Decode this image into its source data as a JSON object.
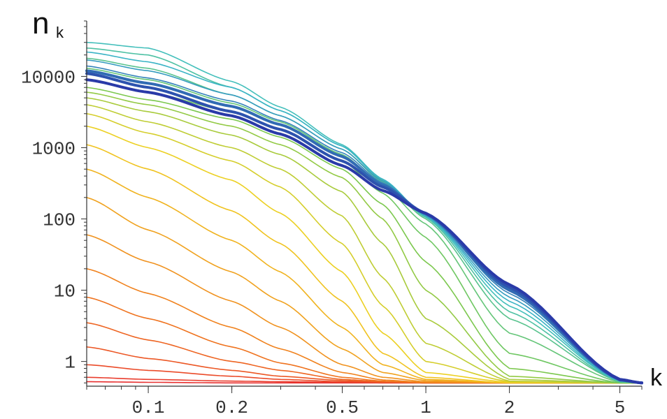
{
  "chart_data": {
    "type": "line",
    "x_scale": "log",
    "y_scale": "log",
    "xlabel": "k",
    "ylabel": "n",
    "ylabel_subscript": "k",
    "xlim": [
      0.06,
      6.0
    ],
    "ylim": [
      0.45,
      60000
    ],
    "x_ticks": [
      {
        "value": 0.1,
        "label": "0.1"
      },
      {
        "value": 0.2,
        "label": "0.2"
      },
      {
        "value": 0.5,
        "label": "0.5"
      },
      {
        "value": 1,
        "label": "1"
      },
      {
        "value": 2,
        "label": "2"
      },
      {
        "value": 5,
        "label": "5"
      }
    ],
    "y_ticks": [
      {
        "value": 1,
        "label": "1"
      },
      {
        "value": 10,
        "label": "10"
      },
      {
        "value": 100,
        "label": "100"
      },
      {
        "value": 1000,
        "label": "1000"
      },
      {
        "value": 10000,
        "label": "10000"
      }
    ],
    "grid": false,
    "legend": "none",
    "color_scheme": "rainbow: red (earliest) through orange, yellow, green, cyan to blue (latest)",
    "curve_colors": {
      "start": "#e83030",
      "mid": "#f0d020",
      "end": "#2a3aa8"
    },
    "asymptote": 0.5,
    "series": [
      {
        "x": [
          0.06,
          0.1,
          0.2,
          0.3,
          0.5,
          0.7,
          1.0,
          2.0,
          5.0,
          6.0
        ],
        "y": [
          0.52,
          0.51,
          0.5,
          0.5,
          0.5,
          0.5,
          0.5,
          0.5,
          0.5,
          0.5
        ]
      },
      {
        "x": [
          0.06,
          0.1,
          0.2,
          0.3,
          0.5,
          0.7,
          1.0,
          2.0,
          5.0,
          6.0
        ],
        "y": [
          0.6,
          0.56,
          0.53,
          0.52,
          0.51,
          0.5,
          0.5,
          0.5,
          0.5,
          0.5
        ]
      },
      {
        "x": [
          0.06,
          0.1,
          0.2,
          0.3,
          0.5,
          0.7,
          1.0,
          2.0,
          5.0,
          6.0
        ],
        "y": [
          0.9,
          0.75,
          0.62,
          0.56,
          0.52,
          0.51,
          0.5,
          0.5,
          0.5,
          0.5
        ]
      },
      {
        "x": [
          0.06,
          0.1,
          0.2,
          0.3,
          0.5,
          0.7,
          1.0,
          2.0,
          5.0,
          6.0
        ],
        "y": [
          1.6,
          1.1,
          0.75,
          0.62,
          0.54,
          0.51,
          0.5,
          0.5,
          0.5,
          0.5
        ]
      },
      {
        "x": [
          0.06,
          0.1,
          0.2,
          0.3,
          0.5,
          0.7,
          1.0,
          2.0,
          5.0,
          6.0
        ],
        "y": [
          3.5,
          2.0,
          1.0,
          0.75,
          0.56,
          0.52,
          0.5,
          0.5,
          0.5,
          0.5
        ]
      },
      {
        "x": [
          0.06,
          0.1,
          0.2,
          0.3,
          0.5,
          0.7,
          1.0,
          2.0,
          5.0,
          6.0
        ],
        "y": [
          8,
          4,
          1.6,
          0.95,
          0.6,
          0.53,
          0.5,
          0.5,
          0.5,
          0.5
        ]
      },
      {
        "x": [
          0.06,
          0.1,
          0.2,
          0.3,
          0.5,
          0.7,
          1.0,
          2.0,
          5.0,
          6.0
        ],
        "y": [
          20,
          9,
          3,
          1.5,
          0.7,
          0.55,
          0.51,
          0.5,
          0.5,
          0.5
        ]
      },
      {
        "x": [
          0.06,
          0.1,
          0.2,
          0.3,
          0.5,
          0.7,
          1.0,
          2.0,
          5.0,
          6.0
        ],
        "y": [
          60,
          25,
          7,
          3,
          0.9,
          0.6,
          0.52,
          0.5,
          0.5,
          0.5
        ]
      },
      {
        "x": [
          0.06,
          0.1,
          0.2,
          0.3,
          0.5,
          0.7,
          1.0,
          2.0,
          5.0,
          6.0
        ],
        "y": [
          200,
          70,
          18,
          7,
          1.5,
          0.7,
          0.54,
          0.5,
          0.5,
          0.5
        ]
      },
      {
        "x": [
          0.06,
          0.1,
          0.2,
          0.3,
          0.5,
          0.7,
          1.0,
          2.0,
          5.0,
          6.0
        ],
        "y": [
          500,
          200,
          50,
          18,
          3,
          0.9,
          0.56,
          0.5,
          0.5,
          0.5
        ]
      },
      {
        "x": [
          0.06,
          0.1,
          0.2,
          0.3,
          0.5,
          0.7,
          1.0,
          2.0,
          5.0,
          6.0
        ],
        "y": [
          1100,
          500,
          130,
          45,
          7,
          1.3,
          0.6,
          0.5,
          0.5,
          0.5
        ]
      },
      {
        "x": [
          0.06,
          0.1,
          0.2,
          0.3,
          0.5,
          0.7,
          1.0,
          2.0,
          5.0,
          6.0
        ],
        "y": [
          2000,
          1000,
          350,
          120,
          18,
          2.5,
          0.7,
          0.51,
          0.5,
          0.5
        ]
      },
      {
        "x": [
          0.06,
          0.1,
          0.2,
          0.3,
          0.5,
          0.7,
          1.0,
          2.0,
          5.0,
          6.0
        ],
        "y": [
          3000,
          1600,
          650,
          280,
          45,
          6,
          1.0,
          0.52,
          0.5,
          0.5
        ]
      },
      {
        "x": [
          0.06,
          0.1,
          0.2,
          0.3,
          0.5,
          0.7,
          1.0,
          2.0,
          5.0,
          6.0
        ],
        "y": [
          4000,
          2300,
          1000,
          500,
          110,
          15,
          1.8,
          0.53,
          0.5,
          0.5
        ]
      },
      {
        "x": [
          0.06,
          0.1,
          0.2,
          0.3,
          0.5,
          0.7,
          1.0,
          2.0,
          5.0,
          6.0
        ],
        "y": [
          5000,
          3200,
          1500,
          800,
          240,
          45,
          4,
          0.56,
          0.5,
          0.5
        ]
      },
      {
        "x": [
          0.06,
          0.1,
          0.2,
          0.3,
          0.5,
          0.7,
          1.0,
          2.0,
          5.0,
          6.0
        ],
        "y": [
          6000,
          4000,
          2000,
          1100,
          380,
          100,
          10,
          0.62,
          0.5,
          0.5
        ]
      },
      {
        "x": [
          0.06,
          0.1,
          0.2,
          0.3,
          0.5,
          0.7,
          1.0,
          2.0,
          5.0,
          6.0
        ],
        "y": [
          7000,
          4700,
          2500,
          1400,
          500,
          160,
          25,
          0.8,
          0.5,
          0.5
        ]
      },
      {
        "x": [
          0.06,
          0.1,
          0.2,
          0.3,
          0.5,
          0.7,
          1.0,
          2.0,
          5.0,
          6.0
        ],
        "y": [
          9000,
          6000,
          3200,
          1800,
          650,
          230,
          55,
          1.3,
          0.5,
          0.5
        ]
      },
      {
        "x": [
          0.06,
          0.1,
          0.2,
          0.3,
          0.5,
          0.7,
          1.0,
          2.0,
          5.0,
          6.0
        ],
        "y": [
          13000,
          9000,
          4200,
          2300,
          800,
          290,
          85,
          2.5,
          0.51,
          0.5
        ]
      },
      {
        "x": [
          0.06,
          0.1,
          0.2,
          0.3,
          0.5,
          0.7,
          1.0,
          2.0,
          5.0,
          6.0
        ],
        "y": [
          18000,
          13000,
          5500,
          2800,
          950,
          330,
          100,
          4,
          0.52,
          0.5
        ]
      },
      {
        "x": [
          0.06,
          0.1,
          0.2,
          0.3,
          0.5,
          0.7,
          1.0,
          2.0,
          5.0,
          6.0
        ],
        "y": [
          25000,
          20000,
          7000,
          3300,
          1050,
          350,
          105,
          5,
          0.52,
          0.5
        ]
      },
      {
        "x": [
          0.06,
          0.1,
          0.2,
          0.3,
          0.5,
          0.7,
          1.0,
          2.0,
          5.0,
          6.0
        ],
        "y": [
          30000,
          25000,
          8500,
          3700,
          1100,
          360,
          108,
          6,
          0.53,
          0.5
        ]
      },
      {
        "x": [
          0.06,
          0.1,
          0.2,
          0.3,
          0.5,
          0.7,
          1.0,
          2.0,
          5.0,
          6.0
        ],
        "y": [
          22000,
          16000,
          7000,
          3300,
          1050,
          360,
          110,
          7,
          0.53,
          0.5
        ]
      },
      {
        "x": [
          0.06,
          0.1,
          0.2,
          0.3,
          0.5,
          0.7,
          1.0,
          2.0,
          5.0,
          6.0
        ],
        "y": [
          17000,
          12000,
          5500,
          2800,
          950,
          340,
          112,
          8,
          0.54,
          0.5
        ]
      },
      {
        "x": [
          0.06,
          0.1,
          0.2,
          0.3,
          0.5,
          0.7,
          1.0,
          2.0,
          5.0,
          6.0
        ],
        "y": [
          14000,
          9500,
          4500,
          2400,
          850,
          320,
          115,
          9,
          0.54,
          0.5
        ]
      },
      {
        "x": [
          0.06,
          0.1,
          0.2,
          0.3,
          0.5,
          0.7,
          1.0,
          2.0,
          5.0,
          6.0
        ],
        "y": [
          12000,
          8000,
          3800,
          2100,
          750,
          300,
          118,
          10,
          0.55,
          0.5
        ]
      },
      {
        "x": [
          0.06,
          0.1,
          0.2,
          0.3,
          0.5,
          0.7,
          1.0,
          2.0,
          5.0,
          6.0
        ],
        "y": [
          11000,
          7000,
          3200,
          1800,
          650,
          280,
          120,
          11,
          0.55,
          0.5
        ]
      },
      {
        "x": [
          0.06,
          0.1,
          0.2,
          0.3,
          0.5,
          0.7,
          1.0,
          2.0,
          5.0,
          6.0
        ],
        "y": [
          9000,
          6000,
          2800,
          1550,
          560,
          250,
          120,
          12,
          0.56,
          0.5
        ]
      }
    ]
  }
}
